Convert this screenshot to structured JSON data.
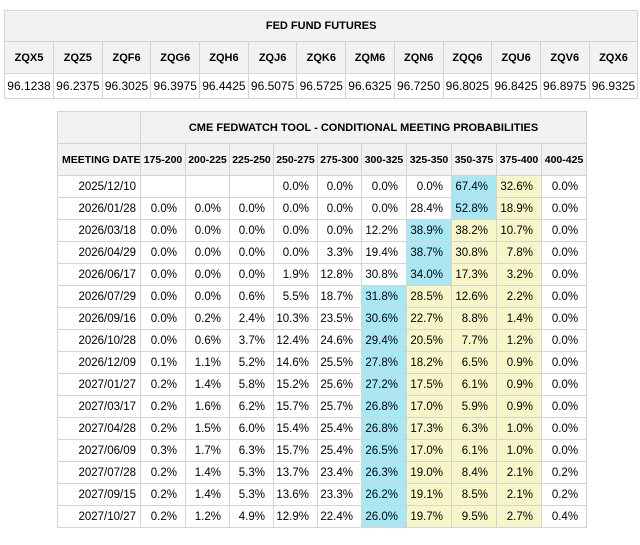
{
  "futures": {
    "title": "FED FUND FUTURES",
    "contracts": [
      "ZQX5",
      "ZQZ5",
      "ZQF6",
      "ZQG6",
      "ZQH6",
      "ZQJ6",
      "ZQK6",
      "ZQM6",
      "ZQN6",
      "ZQQ6",
      "ZQU6",
      "ZQV6",
      "ZQX6"
    ],
    "prices": [
      "96.1238",
      "96.2375",
      "96.3025",
      "96.3975",
      "96.4425",
      "96.5075",
      "96.5725",
      "96.6325",
      "96.7250",
      "96.8025",
      "96.8425",
      "96.8975",
      "96.9325"
    ]
  },
  "fedwatch": {
    "title": "CME FEDWATCH TOOL - CONDITIONAL MEETING PROBABILITIES",
    "meeting_date_header": "MEETING DATE",
    "ranges": [
      "175-200",
      "200-225",
      "225-250",
      "250-275",
      "275-300",
      "300-325",
      "325-350",
      "350-375",
      "375-400",
      "400-425"
    ],
    "highlight_colors": {
      "blue": "#a8e8f5",
      "yellow": "#f6f6c8"
    },
    "rows": [
      {
        "date": "2025/12/10",
        "values": [
          "",
          "",
          "",
          "0.0%",
          "0.0%",
          "0.0%",
          "0.0%",
          "67.4%",
          "32.6%",
          "0.0%"
        ],
        "hl": [
          "n",
          "n",
          "n",
          "n",
          "n",
          "n",
          "n",
          "b",
          "y",
          "n"
        ]
      },
      {
        "date": "2026/01/28",
        "values": [
          "0.0%",
          "0.0%",
          "0.0%",
          "0.0%",
          "0.0%",
          "0.0%",
          "28.4%",
          "52.8%",
          "18.9%",
          "0.0%"
        ],
        "hl": [
          "n",
          "n",
          "n",
          "n",
          "n",
          "n",
          "n",
          "b",
          "y",
          "n"
        ]
      },
      {
        "date": "2026/03/18",
        "values": [
          "0.0%",
          "0.0%",
          "0.0%",
          "0.0%",
          "0.0%",
          "12.2%",
          "38.9%",
          "38.2%",
          "10.7%",
          "0.0%"
        ],
        "hl": [
          "n",
          "n",
          "n",
          "n",
          "n",
          "n",
          "b",
          "y",
          "y",
          "n"
        ]
      },
      {
        "date": "2026/04/29",
        "values": [
          "0.0%",
          "0.0%",
          "0.0%",
          "0.0%",
          "3.3%",
          "19.4%",
          "38.7%",
          "30.8%",
          "7.8%",
          "0.0%"
        ],
        "hl": [
          "n",
          "n",
          "n",
          "n",
          "n",
          "n",
          "b",
          "y",
          "y",
          "n"
        ]
      },
      {
        "date": "2026/06/17",
        "values": [
          "0.0%",
          "0.0%",
          "0.0%",
          "1.9%",
          "12.8%",
          "30.8%",
          "34.0%",
          "17.3%",
          "3.2%",
          "0.0%"
        ],
        "hl": [
          "n",
          "n",
          "n",
          "n",
          "n",
          "n",
          "b",
          "y",
          "y",
          "n"
        ]
      },
      {
        "date": "2026/07/29",
        "values": [
          "0.0%",
          "0.0%",
          "0.6%",
          "5.5%",
          "18.7%",
          "31.8%",
          "28.5%",
          "12.6%",
          "2.2%",
          "0.0%"
        ],
        "hl": [
          "n",
          "n",
          "n",
          "n",
          "n",
          "b",
          "y",
          "y",
          "y",
          "n"
        ]
      },
      {
        "date": "2026/09/16",
        "values": [
          "0.0%",
          "0.2%",
          "2.4%",
          "10.3%",
          "23.5%",
          "30.6%",
          "22.7%",
          "8.8%",
          "1.4%",
          "0.0%"
        ],
        "hl": [
          "n",
          "n",
          "n",
          "n",
          "n",
          "b",
          "y",
          "y",
          "y",
          "n"
        ]
      },
      {
        "date": "2026/10/28",
        "values": [
          "0.0%",
          "0.6%",
          "3.7%",
          "12.4%",
          "24.6%",
          "29.4%",
          "20.5%",
          "7.7%",
          "1.2%",
          "0.0%"
        ],
        "hl": [
          "n",
          "n",
          "n",
          "n",
          "n",
          "b",
          "y",
          "y",
          "y",
          "n"
        ]
      },
      {
        "date": "2026/12/09",
        "values": [
          "0.1%",
          "1.1%",
          "5.2%",
          "14.6%",
          "25.5%",
          "27.8%",
          "18.2%",
          "6.5%",
          "0.9%",
          "0.0%"
        ],
        "hl": [
          "n",
          "n",
          "n",
          "n",
          "n",
          "b",
          "y",
          "y",
          "y",
          "n"
        ]
      },
      {
        "date": "2027/01/27",
        "values": [
          "0.2%",
          "1.4%",
          "5.8%",
          "15.2%",
          "25.6%",
          "27.2%",
          "17.5%",
          "6.1%",
          "0.9%",
          "0.0%"
        ],
        "hl": [
          "n",
          "n",
          "n",
          "n",
          "n",
          "b",
          "y",
          "y",
          "y",
          "n"
        ]
      },
      {
        "date": "2027/03/17",
        "values": [
          "0.2%",
          "1.6%",
          "6.2%",
          "15.7%",
          "25.7%",
          "26.8%",
          "17.0%",
          "5.9%",
          "0.9%",
          "0.0%"
        ],
        "hl": [
          "n",
          "n",
          "n",
          "n",
          "n",
          "b",
          "y",
          "y",
          "y",
          "n"
        ]
      },
      {
        "date": "2027/04/28",
        "values": [
          "0.2%",
          "1.5%",
          "6.0%",
          "15.4%",
          "25.4%",
          "26.8%",
          "17.3%",
          "6.3%",
          "1.0%",
          "0.0%"
        ],
        "hl": [
          "n",
          "n",
          "n",
          "n",
          "n",
          "b",
          "y",
          "y",
          "y",
          "n"
        ]
      },
      {
        "date": "2027/06/09",
        "values": [
          "0.3%",
          "1.7%",
          "6.3%",
          "15.7%",
          "25.4%",
          "26.5%",
          "17.0%",
          "6.1%",
          "1.0%",
          "0.0%"
        ],
        "hl": [
          "n",
          "n",
          "n",
          "n",
          "n",
          "b",
          "y",
          "y",
          "y",
          "n"
        ]
      },
      {
        "date": "2027/07/28",
        "values": [
          "0.2%",
          "1.4%",
          "5.3%",
          "13.7%",
          "23.4%",
          "26.3%",
          "19.0%",
          "8.4%",
          "2.1%",
          "0.2%"
        ],
        "hl": [
          "n",
          "n",
          "n",
          "n",
          "n",
          "b",
          "y",
          "y",
          "y",
          "n"
        ]
      },
      {
        "date": "2027/09/15",
        "values": [
          "0.2%",
          "1.4%",
          "5.3%",
          "13.6%",
          "23.3%",
          "26.2%",
          "19.1%",
          "8.5%",
          "2.1%",
          "0.2%"
        ],
        "hl": [
          "n",
          "n",
          "n",
          "n",
          "n",
          "b",
          "y",
          "y",
          "y",
          "n"
        ]
      },
      {
        "date": "2027/10/27",
        "values": [
          "0.2%",
          "1.2%",
          "4.9%",
          "12.9%",
          "22.4%",
          "26.0%",
          "19.7%",
          "9.5%",
          "2.7%",
          "0.4%"
        ],
        "hl": [
          "n",
          "n",
          "n",
          "n",
          "n",
          "b",
          "y",
          "y",
          "y",
          "n"
        ]
      }
    ]
  }
}
